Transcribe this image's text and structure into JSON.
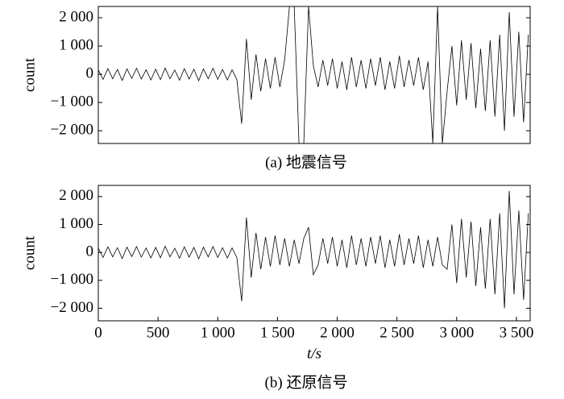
{
  "chart_data": [
    {
      "type": "line",
      "ylabel": "count",
      "caption": "(a) 地震信号",
      "color": "#000000",
      "xlim": [
        0,
        3615
      ],
      "ylim": [
        -2450,
        2400
      ],
      "yticks": [
        {
          "value": -2000,
          "label": "−2 000"
        },
        {
          "value": -1000,
          "label": "−1 000"
        },
        0,
        {
          "value": 1000,
          "label": "1 000"
        },
        {
          "value": 2000,
          "label": "2 000"
        }
      ],
      "x": [
        0,
        40,
        80,
        120,
        160,
        200,
        240,
        280,
        320,
        360,
        400,
        440,
        480,
        520,
        560,
        600,
        640,
        680,
        720,
        760,
        800,
        840,
        880,
        920,
        960,
        1000,
        1040,
        1080,
        1120,
        1160,
        1200,
        1240,
        1280,
        1320,
        1360,
        1400,
        1440,
        1480,
        1520,
        1560,
        1600,
        1640,
        1680,
        1720,
        1760,
        1800,
        1840,
        1880,
        1920,
        1960,
        2000,
        2040,
        2080,
        2120,
        2160,
        2200,
        2240,
        2280,
        2320,
        2360,
        2400,
        2440,
        2480,
        2520,
        2560,
        2600,
        2640,
        2680,
        2720,
        2760,
        2800,
        2840,
        2880,
        2920,
        2960,
        3000,
        3040,
        3080,
        3120,
        3160,
        3200,
        3240,
        3280,
        3320,
        3360,
        3400,
        3440,
        3480,
        3520,
        3560,
        3600
      ],
      "values": [
        150,
        -180,
        200,
        -160,
        170,
        -220,
        190,
        -150,
        210,
        -170,
        160,
        -200,
        180,
        -190,
        220,
        -160,
        150,
        -210,
        200,
        -170,
        180,
        -230,
        190,
        -160,
        210,
        -180,
        170,
        -200,
        160,
        -190,
        -1750,
        1250,
        -900,
        700,
        -600,
        550,
        -500,
        600,
        -450,
        500,
        2400,
        2400,
        -2450,
        -2450,
        2400,
        300,
        -450,
        500,
        -400,
        550,
        -500,
        450,
        -550,
        600,
        -450,
        500,
        -500,
        550,
        -400,
        600,
        -550,
        450,
        -500,
        650,
        -450,
        500,
        -400,
        600,
        -550,
        450,
        -2450,
        2400,
        -2450,
        -600,
        1000,
        -1100,
        1200,
        -900,
        1100,
        -1200,
        900,
        -1300,
        1200,
        -1500,
        1400,
        -2000,
        2200,
        -1500,
        1500,
        -1700,
        1400
      ]
    },
    {
      "type": "line",
      "ylabel": "count",
      "xlabel": "t/s",
      "caption": "(b) 还原信号",
      "color": "#000000",
      "xlim": [
        0,
        3615
      ],
      "ylim": [
        -2450,
        2400
      ],
      "xticks": [
        0,
        500,
        {
          "value": 1000,
          "label": "1 000"
        },
        {
          "value": 1500,
          "label": "1 500"
        },
        {
          "value": 2000,
          "label": "2 000"
        },
        {
          "value": 2500,
          "label": "2 500"
        },
        {
          "value": 3000,
          "label": "3 000"
        },
        {
          "value": 3500,
          "label": "3 500"
        }
      ],
      "yticks": [
        {
          "value": -2000,
          "label": "−2 000"
        },
        {
          "value": -1000,
          "label": "−1 000"
        },
        0,
        {
          "value": 1000,
          "label": "1 000"
        },
        {
          "value": 2000,
          "label": "2 000"
        }
      ],
      "x": [
        0,
        40,
        80,
        120,
        160,
        200,
        240,
        280,
        320,
        360,
        400,
        440,
        480,
        520,
        560,
        600,
        640,
        680,
        720,
        760,
        800,
        840,
        880,
        920,
        960,
        1000,
        1040,
        1080,
        1120,
        1160,
        1200,
        1240,
        1280,
        1320,
        1360,
        1400,
        1440,
        1480,
        1520,
        1560,
        1600,
        1640,
        1680,
        1720,
        1760,
        1800,
        1840,
        1880,
        1920,
        1960,
        2000,
        2040,
        2080,
        2120,
        2160,
        2200,
        2240,
        2280,
        2320,
        2360,
        2400,
        2440,
        2480,
        2520,
        2560,
        2600,
        2640,
        2680,
        2720,
        2760,
        2800,
        2840,
        2880,
        2920,
        2960,
        3000,
        3040,
        3080,
        3120,
        3160,
        3200,
        3240,
        3280,
        3320,
        3360,
        3400,
        3440,
        3480,
        3520,
        3560,
        3600
      ],
      "values": [
        150,
        -180,
        200,
        -160,
        170,
        -220,
        190,
        -150,
        210,
        -170,
        160,
        -200,
        180,
        -190,
        220,
        -160,
        150,
        -210,
        200,
        -170,
        180,
        -230,
        190,
        -160,
        210,
        -180,
        170,
        -200,
        160,
        -190,
        -1750,
        1250,
        -900,
        700,
        -600,
        550,
        -500,
        600,
        -450,
        500,
        -500,
        450,
        -400,
        500,
        900,
        -800,
        -450,
        500,
        -400,
        550,
        -500,
        450,
        -550,
        600,
        -450,
        500,
        -500,
        550,
        -400,
        600,
        -550,
        450,
        -500,
        650,
        -450,
        500,
        -400,
        600,
        -550,
        450,
        -500,
        550,
        -450,
        -600,
        1000,
        -1100,
        1200,
        -900,
        1100,
        -1200,
        900,
        -1300,
        1200,
        -1500,
        1400,
        -2000,
        2200,
        -1500,
        1500,
        -1700,
        1400
      ]
    }
  ]
}
